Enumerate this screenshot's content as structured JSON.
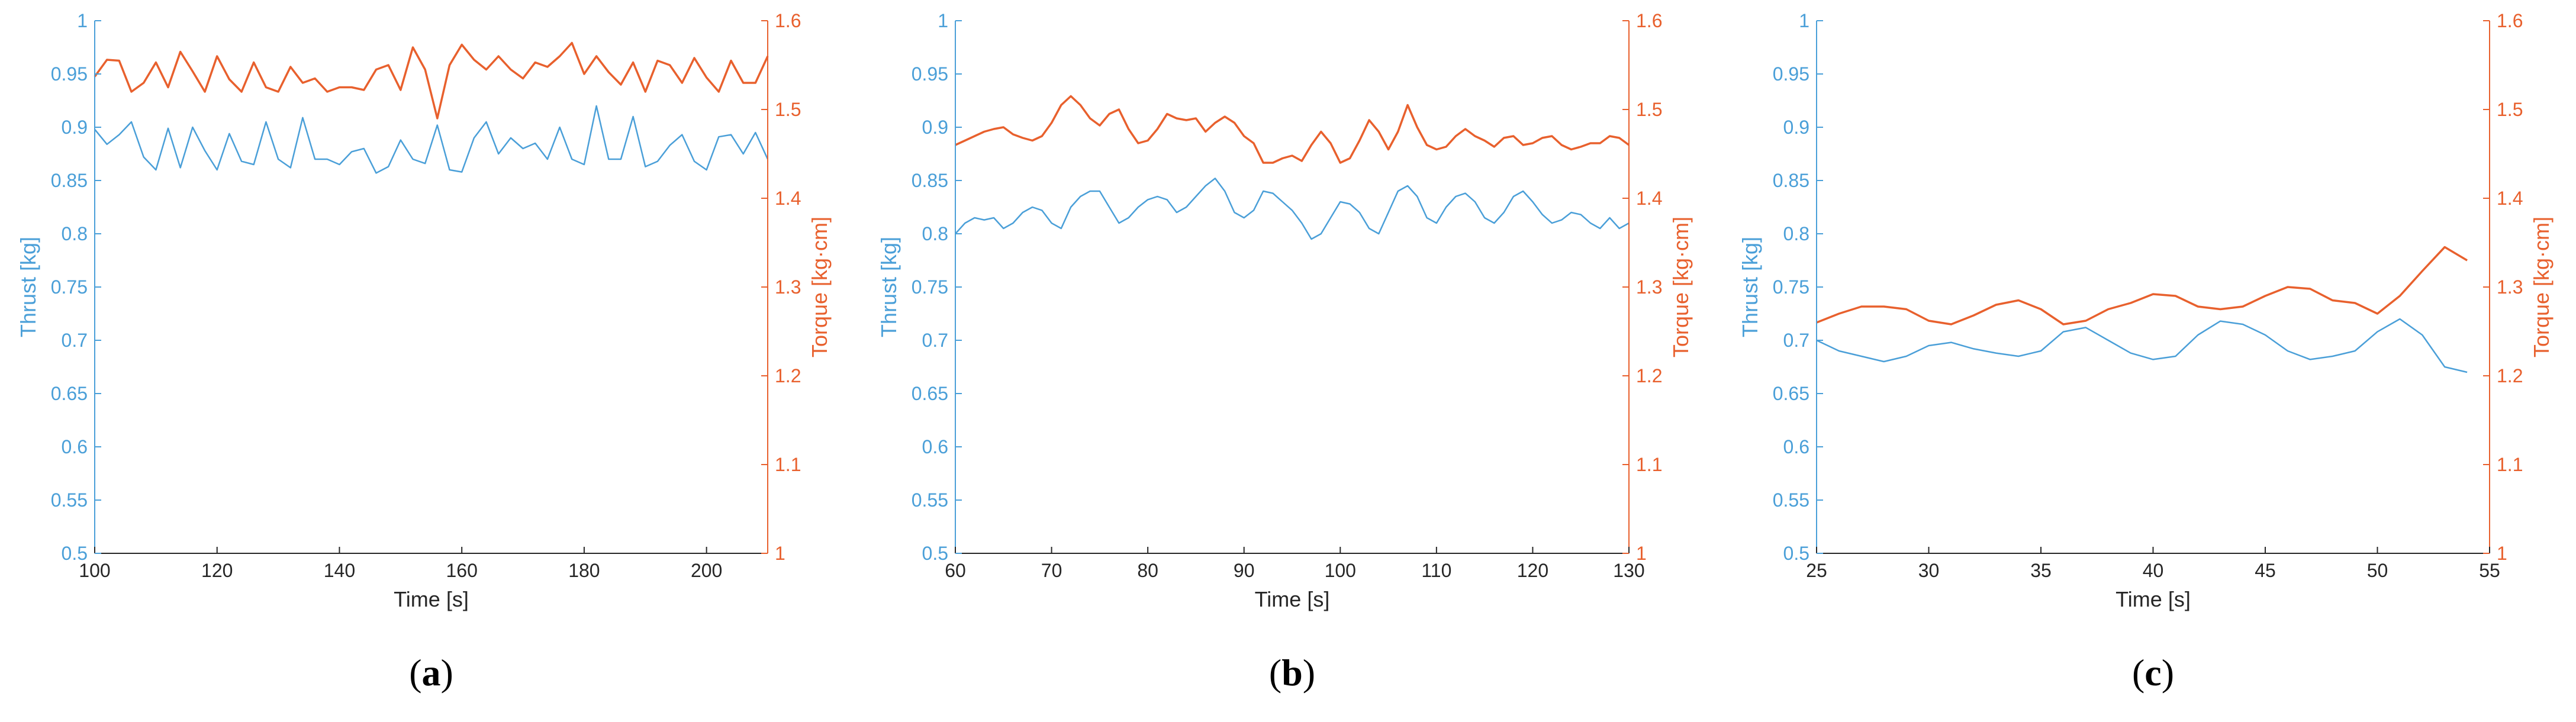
{
  "colors": {
    "thrust": "#4a9fd8",
    "torque": "#e8602d",
    "axis_gray": "#262626"
  },
  "chart_data": [
    {
      "type": "line",
      "panel": "a",
      "caption_open": "(",
      "caption_letter": "a",
      "caption_close": ")",
      "xlabel": "Time [s]",
      "ylabel_left": "Thrust [kg]",
      "ylabel_right": "Torque [kg·cm]",
      "xlim": [
        100,
        210
      ],
      "ylim_left": [
        0.5,
        1.0
      ],
      "ylim_right": [
        1.0,
        1.6
      ],
      "xticks": [
        "100",
        "120",
        "140",
        "160",
        "180",
        "200"
      ],
      "yticks_left": [
        "0.5",
        "0.55",
        "0.6",
        "0.65",
        "0.7",
        "0.75",
        "0.8",
        "0.85",
        "0.9",
        "0.95",
        "1"
      ],
      "yticks_right": [
        "1",
        "1.1",
        "1.2",
        "1.3",
        "1.4",
        "1.5",
        "1.6"
      ],
      "grid": false,
      "series": [
        {
          "name": "Thrust",
          "axis": "left",
          "x": [
            100,
            102,
            104,
            106,
            108,
            110,
            112,
            114,
            116,
            118,
            120,
            122,
            124,
            126,
            128,
            130,
            132,
            134,
            136,
            138,
            140,
            142,
            144,
            146,
            148,
            150,
            152,
            154,
            156,
            158,
            160,
            162,
            164,
            166,
            168,
            170,
            172,
            174,
            176,
            178,
            180,
            182,
            184,
            186,
            188,
            190,
            192,
            194,
            196,
            198,
            200,
            202,
            204,
            206,
            208,
            210
          ],
          "y": [
            0.898,
            0.884,
            0.893,
            0.905,
            0.872,
            0.86,
            0.899,
            0.862,
            0.9,
            0.878,
            0.86,
            0.894,
            0.868,
            0.865,
            0.905,
            0.87,
            0.862,
            0.909,
            0.87,
            0.87,
            0.865,
            0.877,
            0.88,
            0.857,
            0.863,
            0.888,
            0.87,
            0.866,
            0.902,
            0.86,
            0.858,
            0.89,
            0.905,
            0.875,
            0.89,
            0.88,
            0.885,
            0.87,
            0.9,
            0.87,
            0.865,
            0.92,
            0.87,
            0.87,
            0.91,
            0.863,
            0.868,
            0.883,
            0.893,
            0.868,
            0.86,
            0.891,
            0.893,
            0.875,
            0.895,
            0.87
          ]
        },
        {
          "name": "Torque",
          "axis": "right",
          "x": [
            100,
            102,
            104,
            106,
            108,
            110,
            112,
            114,
            116,
            118,
            120,
            122,
            124,
            126,
            128,
            130,
            132,
            134,
            136,
            138,
            140,
            142,
            144,
            146,
            148,
            150,
            152,
            154,
            156,
            158,
            160,
            162,
            164,
            166,
            168,
            170,
            172,
            174,
            176,
            178,
            180,
            182,
            184,
            186,
            188,
            190,
            192,
            194,
            196,
            198,
            200,
            202,
            204,
            206,
            208,
            210
          ],
          "y": [
            1.537,
            1.556,
            1.555,
            1.52,
            1.53,
            1.553,
            1.525,
            1.565,
            1.543,
            1.52,
            1.56,
            1.534,
            1.52,
            1.553,
            1.525,
            1.52,
            1.548,
            1.53,
            1.535,
            1.52,
            1.525,
            1.525,
            1.522,
            1.545,
            1.55,
            1.522,
            1.57,
            1.545,
            1.49,
            1.55,
            1.573,
            1.556,
            1.545,
            1.56,
            1.545,
            1.535,
            1.553,
            1.548,
            1.56,
            1.575,
            1.54,
            1.56,
            1.542,
            1.528,
            1.553,
            1.52,
            1.555,
            1.55,
            1.53,
            1.558,
            1.536,
            1.52,
            1.555,
            1.53,
            1.53,
            1.56
          ]
        }
      ]
    },
    {
      "type": "line",
      "panel": "b",
      "caption_open": "(",
      "caption_letter": "b",
      "caption_close": ")",
      "xlabel": "Time [s]",
      "ylabel_left": "Thrust [kg]",
      "ylabel_right": "Torque [kg·cm]",
      "xlim": [
        60,
        130
      ],
      "ylim_left": [
        0.5,
        1.0
      ],
      "ylim_right": [
        1.0,
        1.6
      ],
      "xticks": [
        "60",
        "70",
        "80",
        "90",
        "100",
        "110",
        "120",
        "130"
      ],
      "yticks_left": [
        "0.5",
        "0.55",
        "0.6",
        "0.65",
        "0.7",
        "0.75",
        "0.8",
        "0.85",
        "0.9",
        "0.95",
        "1"
      ],
      "yticks_right": [
        "1",
        "1.1",
        "1.2",
        "1.3",
        "1.4",
        "1.5",
        "1.6"
      ],
      "grid": false,
      "series": [
        {
          "name": "Thrust",
          "axis": "left",
          "x": [
            60,
            61,
            62,
            63,
            64,
            65,
            66,
            67,
            68,
            69,
            70,
            71,
            72,
            73,
            74,
            75,
            76,
            77,
            78,
            79,
            80,
            81,
            82,
            83,
            84,
            85,
            86,
            87,
            88,
            89,
            90,
            91,
            92,
            93,
            94,
            95,
            96,
            97,
            98,
            99,
            100,
            101,
            102,
            103,
            104,
            105,
            106,
            107,
            108,
            109,
            110,
            111,
            112,
            113,
            114,
            115,
            116,
            117,
            118,
            119,
            120,
            121,
            122,
            123,
            124,
            125,
            126,
            127,
            128,
            129,
            130
          ],
          "y": [
            0.8,
            0.81,
            0.815,
            0.813,
            0.815,
            0.805,
            0.81,
            0.82,
            0.825,
            0.822,
            0.81,
            0.805,
            0.825,
            0.835,
            0.84,
            0.84,
            0.825,
            0.81,
            0.815,
            0.825,
            0.832,
            0.835,
            0.832,
            0.82,
            0.825,
            0.835,
            0.845,
            0.852,
            0.84,
            0.82,
            0.815,
            0.822,
            0.84,
            0.838,
            0.83,
            0.822,
            0.81,
            0.795,
            0.8,
            0.815,
            0.83,
            0.828,
            0.82,
            0.805,
            0.8,
            0.82,
            0.84,
            0.845,
            0.835,
            0.815,
            0.81,
            0.825,
            0.835,
            0.838,
            0.83,
            0.815,
            0.81,
            0.82,
            0.835,
            0.84,
            0.83,
            0.818,
            0.81,
            0.813,
            0.82,
            0.818,
            0.81,
            0.805,
            0.815,
            0.805,
            0.81
          ]
        },
        {
          "name": "Torque",
          "axis": "right",
          "x": [
            60,
            61,
            62,
            63,
            64,
            65,
            66,
            67,
            68,
            69,
            70,
            71,
            72,
            73,
            74,
            75,
            76,
            77,
            78,
            79,
            80,
            81,
            82,
            83,
            84,
            85,
            86,
            87,
            88,
            89,
            90,
            91,
            92,
            93,
            94,
            95,
            96,
            97,
            98,
            99,
            100,
            101,
            102,
            103,
            104,
            105,
            106,
            107,
            108,
            109,
            110,
            111,
            112,
            113,
            114,
            115,
            116,
            117,
            118,
            119,
            120,
            121,
            122,
            123,
            124,
            125,
            126,
            127,
            128,
            129,
            130
          ],
          "y": [
            1.46,
            1.465,
            1.47,
            1.475,
            1.478,
            1.48,
            1.472,
            1.468,
            1.465,
            1.47,
            1.485,
            1.505,
            1.515,
            1.505,
            1.49,
            1.482,
            1.495,
            1.5,
            1.478,
            1.462,
            1.465,
            1.478,
            1.495,
            1.49,
            1.488,
            1.49,
            1.475,
            1.485,
            1.492,
            1.485,
            1.47,
            1.462,
            1.44,
            1.44,
            1.445,
            1.448,
            1.442,
            1.46,
            1.475,
            1.462,
            1.44,
            1.445,
            1.465,
            1.488,
            1.475,
            1.455,
            1.475,
            1.505,
            1.48,
            1.46,
            1.455,
            1.458,
            1.47,
            1.478,
            1.47,
            1.465,
            1.458,
            1.468,
            1.47,
            1.46,
            1.462,
            1.468,
            1.47,
            1.46,
            1.455,
            1.458,
            1.462,
            1.462,
            1.47,
            1.468,
            1.46
          ]
        }
      ]
    },
    {
      "type": "line",
      "panel": "c",
      "caption_open": "(",
      "caption_letter": "c",
      "caption_close": ")",
      "xlabel": "Time [s]",
      "ylabel_left": "Thrust [kg]",
      "ylabel_right": "Torque [kg·cm]",
      "xlim": [
        25,
        55
      ],
      "ylim_left": [
        0.5,
        1.0
      ],
      "ylim_right": [
        1.0,
        1.6
      ],
      "xticks": [
        "25",
        "30",
        "35",
        "40",
        "45",
        "50",
        "55"
      ],
      "yticks_left": [
        "0.5",
        "0.55",
        "0.6",
        "0.65",
        "0.7",
        "0.75",
        "0.8",
        "0.85",
        "0.9",
        "0.95",
        "1"
      ],
      "yticks_right": [
        "1",
        "1.1",
        "1.2",
        "1.3",
        "1.4",
        "1.5",
        "1.6"
      ],
      "grid": false,
      "series": [
        {
          "name": "Thrust",
          "axis": "left",
          "x": [
            25,
            26,
            27,
            28,
            29,
            30,
            31,
            32,
            33,
            34,
            35,
            36,
            37,
            38,
            39,
            40,
            41,
            42,
            43,
            44,
            45,
            46,
            47,
            48,
            49,
            50,
            51,
            52,
            53,
            54
          ],
          "y": [
            0.7,
            0.69,
            0.685,
            0.68,
            0.685,
            0.695,
            0.698,
            0.692,
            0.688,
            0.685,
            0.69,
            0.708,
            0.712,
            0.7,
            0.688,
            0.682,
            0.685,
            0.705,
            0.718,
            0.715,
            0.705,
            0.69,
            0.682,
            0.685,
            0.69,
            0.708,
            0.72,
            0.705,
            0.675,
            0.67
          ]
        },
        {
          "name": "Torque",
          "axis": "right",
          "x": [
            25,
            26,
            27,
            28,
            29,
            30,
            31,
            32,
            33,
            34,
            35,
            36,
            37,
            38,
            39,
            40,
            41,
            42,
            43,
            44,
            45,
            46,
            47,
            48,
            49,
            50,
            51,
            52,
            53,
            54
          ],
          "y": [
            1.26,
            1.27,
            1.278,
            1.278,
            1.275,
            1.262,
            1.258,
            1.268,
            1.28,
            1.285,
            1.275,
            1.258,
            1.262,
            1.275,
            1.282,
            1.292,
            1.29,
            1.278,
            1.275,
            1.278,
            1.29,
            1.3,
            1.298,
            1.285,
            1.282,
            1.27,
            1.29,
            1.318,
            1.345,
            1.33
          ]
        }
      ]
    }
  ]
}
